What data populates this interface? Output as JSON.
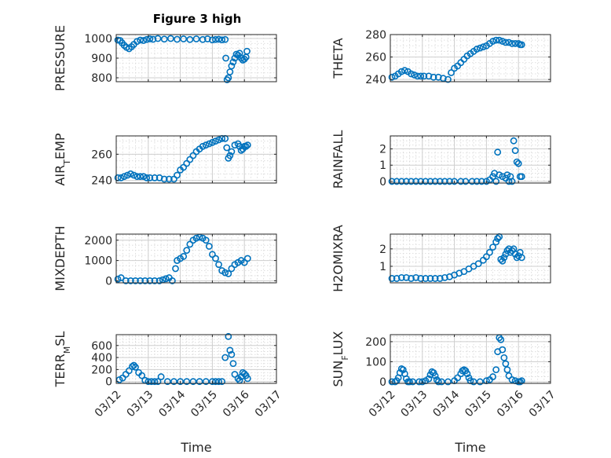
{
  "figure": {
    "title": "Figure 3 high"
  },
  "chart_data": [
    {
      "type": "scatter",
      "title": "Figure 3 high",
      "xlabel": "",
      "ylabel": "PRESSURE",
      "ylim": [
        780,
        1020
      ],
      "yticks": [
        800,
        900,
        1000
      ],
      "ytick_labels": [
        "800",
        "900",
        "1000"
      ],
      "xlim": [
        0,
        5
      ],
      "xticks": [
        0,
        1,
        2,
        3,
        4,
        5
      ],
      "xtick_labels": [],
      "grid": "major+minor",
      "color": "#0072bd",
      "x": [
        0.05,
        0.12,
        0.18,
        0.25,
        0.32,
        0.4,
        0.48,
        0.55,
        0.65,
        0.75,
        0.85,
        0.95,
        1.05,
        1.15,
        1.3,
        1.5,
        1.7,
        1.9,
        2.1,
        2.3,
        2.5,
        2.7,
        2.85,
        3.0,
        3.1,
        3.2,
        3.3,
        3.4,
        3.42,
        3.46,
        3.5,
        3.55,
        3.6,
        3.65,
        3.7,
        3.75,
        3.8,
        3.85,
        3.9,
        3.95,
        4.0,
        4.05,
        4.08
      ],
      "y": [
        992,
        990,
        978,
        965,
        955,
        948,
        958,
        970,
        985,
        992,
        990,
        995,
        998,
        996,
        1000,
        997,
        1000,
        996,
        998,
        995,
        998,
        995,
        998,
        993,
        995,
        996,
        993,
        995,
        900,
        790,
        800,
        830,
        860,
        880,
        900,
        920,
        915,
        925,
        900,
        890,
        895,
        905,
        935
      ]
    },
    {
      "type": "scatter",
      "xlabel": "",
      "ylabel": "THETA",
      "ylim": [
        238,
        280
      ],
      "yticks": [
        240,
        260,
        280
      ],
      "ytick_labels": [
        "240",
        "260",
        "280"
      ],
      "xlim": [
        0,
        5
      ],
      "xticks": [
        0,
        1,
        2,
        3,
        4,
        5
      ],
      "xtick_labels": [],
      "grid": "major+minor",
      "color": "#0072bd",
      "x": [
        0.05,
        0.15,
        0.25,
        0.35,
        0.45,
        0.55,
        0.65,
        0.75,
        0.85,
        0.95,
        1.05,
        1.2,
        1.35,
        1.5,
        1.65,
        1.8,
        1.9,
        2.0,
        2.1,
        2.2,
        2.3,
        2.4,
        2.5,
        2.6,
        2.7,
        2.8,
        2.9,
        3.0,
        3.1,
        3.2,
        3.3,
        3.4,
        3.5,
        3.6,
        3.7,
        3.8,
        3.9,
        4.0,
        4.05,
        4.1
      ],
      "y": [
        242,
        243,
        245,
        247,
        248,
        247,
        245,
        244,
        243,
        243,
        243,
        243,
        242,
        242,
        241,
        240,
        246,
        250,
        252,
        255,
        258,
        261,
        263,
        265,
        267,
        268,
        269,
        270,
        272,
        274,
        275,
        275,
        274,
        273,
        273,
        272,
        272,
        272,
        271,
        271
      ]
    },
    {
      "type": "scatter",
      "xlabel": "",
      "ylabel": "AIR_TEMP",
      "ylim": [
        238,
        274
      ],
      "yticks": [
        240,
        260
      ],
      "ytick_labels": [
        "240",
        "260"
      ],
      "xlim": [
        0,
        5
      ],
      "xticks": [
        0,
        1,
        2,
        3,
        4,
        5
      ],
      "xtick_labels": [],
      "grid": "major+minor",
      "color": "#0072bd",
      "x": [
        0.05,
        0.15,
        0.25,
        0.35,
        0.45,
        0.55,
        0.65,
        0.75,
        0.85,
        0.95,
        1.05,
        1.2,
        1.35,
        1.5,
        1.65,
        1.8,
        1.9,
        2.0,
        2.1,
        2.2,
        2.3,
        2.4,
        2.5,
        2.6,
        2.7,
        2.8,
        2.9,
        3.0,
        3.1,
        3.2,
        3.3,
        3.4,
        3.45,
        3.5,
        3.55,
        3.6,
        3.7,
        3.8,
        3.85,
        3.9,
        3.95,
        4.0,
        4.05,
        4.1
      ],
      "y": [
        242,
        242,
        243,
        244,
        245,
        244,
        243,
        243,
        243,
        242,
        242,
        242,
        242,
        241,
        241,
        241,
        244,
        248,
        250,
        253,
        256,
        259,
        262,
        264,
        266,
        267,
        268,
        269,
        270,
        271,
        272,
        272,
        265,
        257,
        259,
        262,
        267,
        268,
        266,
        263,
        264,
        266,
        266,
        267
      ]
    },
    {
      "type": "scatter",
      "xlabel": "",
      "ylabel": "RAINFALL",
      "ylim": [
        -0.1,
        2.8
      ],
      "yticks": [
        0,
        1,
        2
      ],
      "ytick_labels": [
        "0",
        "1",
        "2"
      ],
      "xlim": [
        0,
        5
      ],
      "xticks": [
        0,
        1,
        2,
        3,
        4,
        5
      ],
      "xtick_labels": [],
      "grid": "major+minor",
      "color": "#0072bd",
      "x": [
        0.05,
        0.2,
        0.35,
        0.5,
        0.65,
        0.8,
        0.95,
        1.1,
        1.25,
        1.4,
        1.55,
        1.7,
        1.85,
        2.0,
        2.2,
        2.35,
        2.55,
        2.7,
        2.85,
        3.0,
        3.1,
        3.2,
        3.25,
        3.3,
        3.35,
        3.4,
        3.5,
        3.6,
        3.65,
        3.7,
        3.75,
        3.8,
        3.85,
        3.9,
        3.95,
        4.0,
        4.05,
        4.1
      ],
      "y": [
        0,
        0,
        0,
        0,
        0,
        0,
        0,
        0,
        0,
        0,
        0,
        0,
        0,
        0,
        0,
        0,
        0,
        0,
        0,
        0,
        0.1,
        0.3,
        0.5,
        0,
        1.8,
        0.4,
        0.3,
        0.2,
        0.4,
        0,
        0.3,
        0,
        2.5,
        1.9,
        1.2,
        1.1,
        0.3,
        0.3
      ]
    },
    {
      "type": "scatter",
      "xlabel": "",
      "ylabel": "MIXDEPTH",
      "ylim": [
        -100,
        2300
      ],
      "yticks": [
        0,
        1000,
        2000
      ],
      "ytick_labels": [
        "0",
        "1000",
        "2000"
      ],
      "xlim": [
        0,
        5
      ],
      "xticks": [
        0,
        1,
        2,
        3,
        4,
        5
      ],
      "xtick_labels": [],
      "grid": "major+minor",
      "color": "#0072bd",
      "x": [
        0.05,
        0.15,
        0.3,
        0.45,
        0.6,
        0.75,
        0.9,
        1.05,
        1.2,
        1.35,
        1.45,
        1.55,
        1.65,
        1.75,
        1.85,
        1.9,
        2.0,
        2.1,
        2.2,
        2.3,
        2.4,
        2.5,
        2.6,
        2.7,
        2.8,
        2.9,
        3.0,
        3.1,
        3.2,
        3.3,
        3.4,
        3.5,
        3.6,
        3.7,
        3.8,
        3.9,
        4.0,
        4.1
      ],
      "y": [
        80,
        150,
        0,
        0,
        0,
        0,
        0,
        0,
        0,
        0,
        50,
        100,
        150,
        0,
        600,
        1000,
        1100,
        1200,
        1500,
        1800,
        2000,
        2100,
        2150,
        2100,
        2000,
        1700,
        1300,
        1100,
        800,
        500,
        400,
        350,
        600,
        800,
        900,
        1000,
        900,
        1100
      ]
    },
    {
      "type": "scatter",
      "xlabel": "",
      "ylabel": "H2OMIXRA",
      "ylim": [
        0.05,
        2.85
      ],
      "yticks": [
        1,
        2
      ],
      "ytick_labels": [
        "1",
        "2"
      ],
      "xlim": [
        0,
        5
      ],
      "xticks": [
        0,
        1,
        2,
        3,
        4,
        5
      ],
      "xtick_labels": [],
      "grid": "major+minor",
      "color": "#0072bd",
      "x": [
        0.05,
        0.2,
        0.35,
        0.5,
        0.65,
        0.8,
        0.95,
        1.1,
        1.25,
        1.4,
        1.55,
        1.7,
        1.85,
        2.0,
        2.15,
        2.3,
        2.45,
        2.6,
        2.75,
        2.9,
        3.0,
        3.1,
        3.2,
        3.3,
        3.35,
        3.4,
        3.45,
        3.5,
        3.55,
        3.6,
        3.65,
        3.7,
        3.75,
        3.8,
        3.85,
        3.9,
        3.95,
        4.0,
        4.05,
        4.1
      ],
      "y": [
        0.3,
        0.3,
        0.35,
        0.35,
        0.3,
        0.35,
        0.3,
        0.3,
        0.3,
        0.3,
        0.3,
        0.35,
        0.4,
        0.5,
        0.6,
        0.7,
        0.85,
        1.0,
        1.15,
        1.35,
        1.55,
        1.8,
        2.1,
        2.4,
        2.6,
        2.7,
        1.4,
        1.3,
        1.5,
        1.7,
        1.9,
        2.0,
        1.8,
        1.9,
        2.0,
        1.7,
        1.5,
        1.6,
        1.8,
        1.5
      ]
    },
    {
      "type": "scatter",
      "xlabel": "Time",
      "ylabel": "TERR_MSL",
      "ylim": [
        -30,
        780
      ],
      "yticks": [
        0,
        200,
        400,
        600
      ],
      "ytick_labels": [
        "0",
        "200",
        "400",
        "600"
      ],
      "xlim": [
        0,
        5
      ],
      "xticks": [
        0,
        1,
        2,
        3,
        4,
        5
      ],
      "xtick_labels": [
        "03/12",
        "03/13",
        "03/14",
        "03/15",
        "03/16",
        "03/17"
      ],
      "grid": "major+minor",
      "color": "#0072bd",
      "x": [
        0.1,
        0.2,
        0.3,
        0.4,
        0.5,
        0.55,
        0.6,
        0.7,
        0.8,
        0.9,
        1.0,
        1.1,
        1.2,
        1.3,
        1.4,
        1.6,
        1.8,
        2.0,
        2.2,
        2.4,
        2.6,
        2.8,
        3.0,
        3.1,
        3.2,
        3.3,
        3.4,
        3.5,
        3.55,
        3.6,
        3.65,
        3.7,
        3.8,
        3.85,
        3.9,
        3.95,
        4.0,
        4.05,
        4.1
      ],
      "y": [
        30,
        60,
        120,
        180,
        250,
        270,
        240,
        150,
        100,
        20,
        0,
        0,
        0,
        0,
        80,
        0,
        0,
        0,
        0,
        0,
        0,
        0,
        0,
        0,
        0,
        0,
        400,
        750,
        520,
        450,
        300,
        120,
        50,
        20,
        80,
        150,
        130,
        100,
        50
      ]
    },
    {
      "type": "scatter",
      "xlabel": "Time",
      "ylabel": "SUN_FLUX",
      "ylim": [
        -8,
        235
      ],
      "yticks": [
        0,
        100,
        200
      ],
      "ytick_labels": [
        "0",
        "100",
        "200"
      ],
      "xlim": [
        0,
        5
      ],
      "xticks": [
        0,
        1,
        2,
        3,
        4,
        5
      ],
      "xtick_labels": [
        "03/12",
        "03/13",
        "03/14",
        "03/15",
        "03/16",
        "03/17"
      ],
      "grid": "major+minor",
      "color": "#0072bd",
      "x": [
        0.05,
        0.15,
        0.2,
        0.25,
        0.3,
        0.35,
        0.4,
        0.45,
        0.5,
        0.55,
        0.6,
        0.7,
        0.9,
        1.0,
        1.1,
        1.2,
        1.25,
        1.3,
        1.35,
        1.4,
        1.45,
        1.5,
        1.6,
        1.8,
        2.0,
        2.1,
        2.2,
        2.25,
        2.3,
        2.35,
        2.4,
        2.45,
        2.5,
        2.6,
        2.8,
        3.0,
        3.1,
        3.2,
        3.3,
        3.35,
        3.4,
        3.45,
        3.5,
        3.55,
        3.6,
        3.65,
        3.7,
        3.8,
        3.9,
        4.0,
        4.05,
        4.1
      ],
      "y": [
        0,
        0,
        5,
        20,
        45,
        65,
        60,
        40,
        15,
        0,
        0,
        0,
        0,
        0,
        5,
        15,
        35,
        50,
        45,
        30,
        10,
        0,
        0,
        0,
        5,
        20,
        40,
        55,
        60,
        55,
        40,
        20,
        5,
        0,
        0,
        5,
        10,
        25,
        60,
        150,
        220,
        210,
        160,
        120,
        90,
        60,
        30,
        10,
        5,
        0,
        0,
        5
      ]
    }
  ]
}
